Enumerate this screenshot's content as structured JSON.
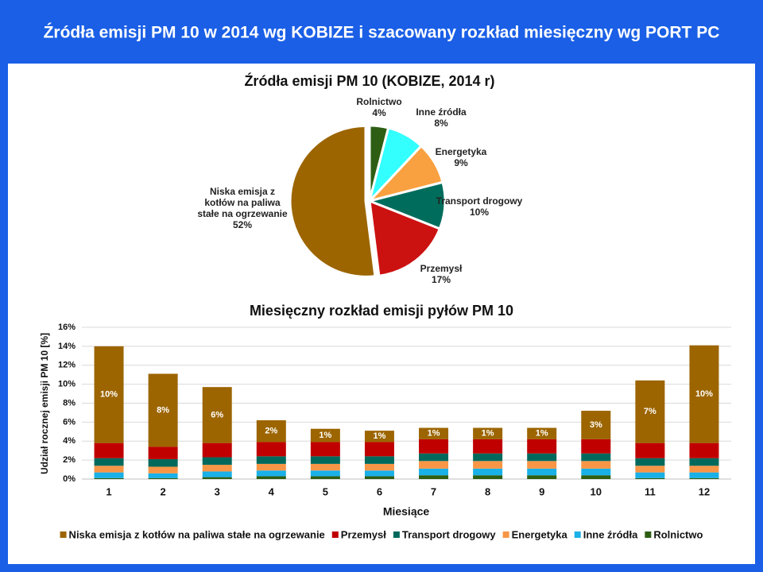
{
  "header": {
    "title": "Źródła emisji PM 10 w 2014 wg KOBIZE i szacowany rozkład miesięczny wg PORT PC"
  },
  "chart_data": [
    {
      "type": "pie",
      "title": "Źródła emisji  PM 10 (KOBIZE,  2014 r)",
      "categories": [
        "Rolnictwo",
        "Inne źródła",
        "Energetyka",
        "Transport drogowy",
        "Przemysł",
        "Niska emisja z kotłów na paliwa stałe na ogrzewanie"
      ],
      "values": [
        4,
        8,
        9,
        10,
        17,
        52
      ],
      "value_labels": [
        "4%",
        "8%",
        "9%",
        "10%",
        "17%",
        "52%"
      ],
      "colors": [
        "#2e5e14",
        "#33ffff",
        "#f9a040",
        "#006d5c",
        "#cc1111",
        "#9c6500"
      ]
    },
    {
      "type": "bar",
      "stacked": true,
      "title": "Miesięczny  rozkład  emisji  pyłów  PM 10",
      "ylabel": "Udział rocznej emisji PM 10 [%]",
      "xlabel": "Miesiące",
      "categories": [
        "1",
        "2",
        "3",
        "4",
        "5",
        "6",
        "7",
        "8",
        "9",
        "10",
        "11",
        "12"
      ],
      "ylim": [
        0,
        16
      ],
      "yticks": [
        {
          "value": 0,
          "label": "0%"
        },
        {
          "value": 2,
          "label": "2%"
        },
        {
          "value": 4,
          "label": "4%"
        },
        {
          "value": 6,
          "label": "6%"
        },
        {
          "value": 8,
          "label": "8%"
        },
        {
          "value": 10,
          "label": "10%"
        },
        {
          "value": 12,
          "label": "12%"
        },
        {
          "value": 14,
          "label": "14%"
        },
        {
          "value": 16,
          "label": "16%"
        }
      ],
      "grid": true,
      "legend": "bottom",
      "series": [
        {
          "name": "Niska emisja z kotłów na paliwa stałe na ogrzewanie",
          "color": "#9c6500",
          "values": [
            10.2,
            7.7,
            5.9,
            2.3,
            1.4,
            1.2,
            1.2,
            1.2,
            1.2,
            3.0,
            6.6,
            10.3
          ],
          "value_labels": [
            "10%",
            "8%",
            "6%",
            "2%",
            "1%",
            "1%",
            "1%",
            "1%",
            "1%",
            "3%",
            "7%",
            "10%"
          ]
        },
        {
          "name": "Przemysł",
          "color": "#c00000",
          "values": [
            1.6,
            1.3,
            1.5,
            1.5,
            1.5,
            1.5,
            1.5,
            1.5,
            1.5,
            1.5,
            1.6,
            1.6
          ]
        },
        {
          "name": "Transport drogowy",
          "color": "#00695c",
          "values": [
            0.8,
            0.8,
            0.8,
            0.8,
            0.8,
            0.8,
            0.8,
            0.8,
            0.8,
            0.8,
            0.8,
            0.8
          ]
        },
        {
          "name": "Energetyka",
          "color": "#f79646",
          "values": [
            0.7,
            0.7,
            0.7,
            0.7,
            0.7,
            0.7,
            0.8,
            0.8,
            0.8,
            0.8,
            0.7,
            0.7
          ]
        },
        {
          "name": "Inne źródła",
          "color": "#1ab0e8",
          "values": [
            0.6,
            0.5,
            0.6,
            0.6,
            0.6,
            0.6,
            0.7,
            0.7,
            0.7,
            0.7,
            0.6,
            0.6
          ]
        },
        {
          "name": "Rolnictwo",
          "color": "#2e5e14",
          "values": [
            0.1,
            0.1,
            0.2,
            0.3,
            0.3,
            0.3,
            0.4,
            0.4,
            0.4,
            0.4,
            0.1,
            0.1
          ]
        }
      ]
    }
  ]
}
